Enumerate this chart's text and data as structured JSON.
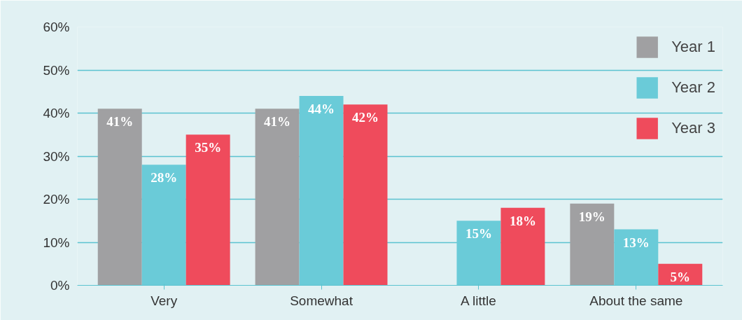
{
  "chart_data": {
    "type": "bar",
    "categories": [
      "Very",
      "Somewhat",
      "A little",
      "About the same"
    ],
    "series": [
      {
        "name": "Year 1",
        "color": "#a0a0a2",
        "values": [
          41,
          41,
          null,
          19
        ],
        "value_labels": [
          "41%",
          "41%",
          null,
          "19%"
        ]
      },
      {
        "name": "Year 2",
        "color": "#6acbd8",
        "values": [
          28,
          44,
          15,
          13
        ],
        "value_labels": [
          "28%",
          "44%",
          "15%",
          "13%"
        ]
      },
      {
        "name": "Year 3",
        "color": "#ef4b5c",
        "values": [
          35,
          42,
          18,
          5
        ],
        "value_labels": [
          "35%",
          "42%",
          "18%",
          "5%"
        ]
      }
    ],
    "ylim": [
      0,
      60
    ],
    "yticks": [
      {
        "value": 0,
        "label": "0%"
      },
      {
        "value": 10,
        "label": "10%"
      },
      {
        "value": 20,
        "label": "20%"
      },
      {
        "value": 30,
        "label": "30%"
      },
      {
        "value": 40,
        "label": "40%"
      },
      {
        "value": 50,
        "label": "50%"
      },
      {
        "value": 60,
        "label": "60%"
      }
    ],
    "grid": "y",
    "legend": "top right"
  }
}
